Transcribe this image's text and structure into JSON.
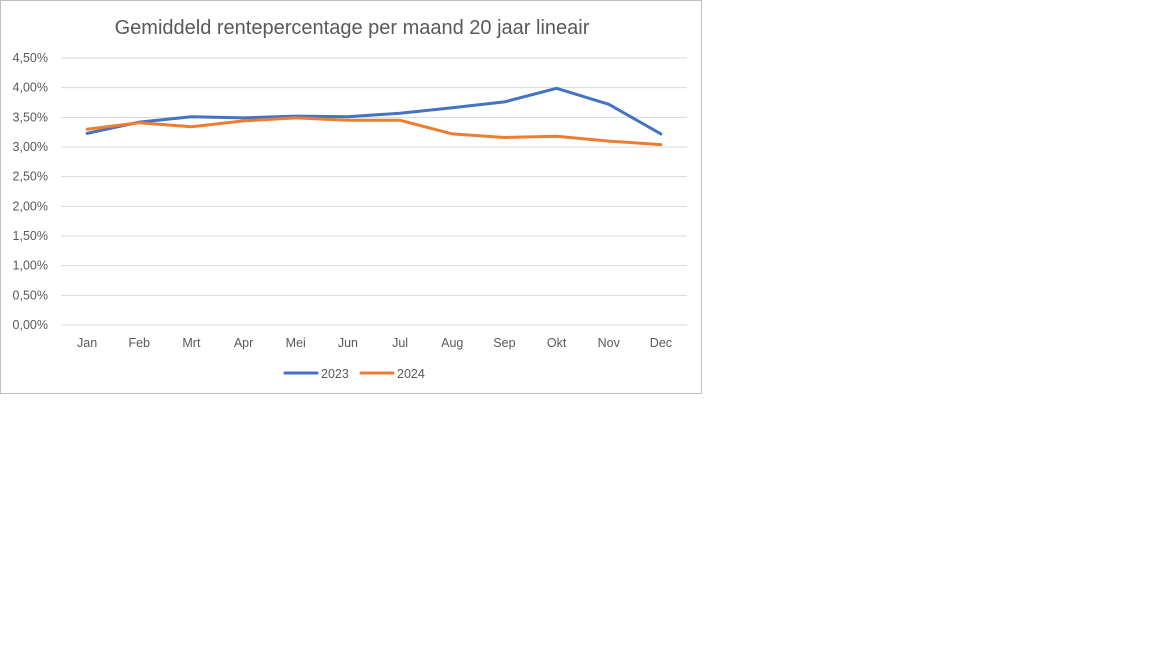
{
  "chart_data": {
    "type": "line",
    "title": "Gemiddeld rentepercentage per maand 20 jaar lineair",
    "xlabel": "",
    "ylabel": "",
    "categories": [
      "Jan",
      "Feb",
      "Mrt",
      "Apr",
      "Mei",
      "Jun",
      "Jul",
      "Aug",
      "Sep",
      "Okt",
      "Nov",
      "Dec"
    ],
    "ylim": [
      0,
      4.5
    ],
    "yticks": [
      "0,00%",
      "0,50%",
      "1,00%",
      "1,50%",
      "2,00%",
      "2,50%",
      "3,00%",
      "3,50%",
      "4,00%",
      "4,50%"
    ],
    "grid": true,
    "legend_position": "bottom",
    "series": [
      {
        "name": "2023",
        "color": "#4472C4",
        "values": [
          3.23,
          3.42,
          3.51,
          3.49,
          3.52,
          3.51,
          3.57,
          3.66,
          3.76,
          3.99,
          3.72,
          3.22
        ]
      },
      {
        "name": "2024",
        "color": "#ED7D31",
        "values": [
          3.3,
          3.41,
          3.34,
          3.44,
          3.49,
          3.45,
          3.45,
          3.22,
          3.16,
          3.18,
          3.1,
          3.04
        ]
      }
    ]
  }
}
